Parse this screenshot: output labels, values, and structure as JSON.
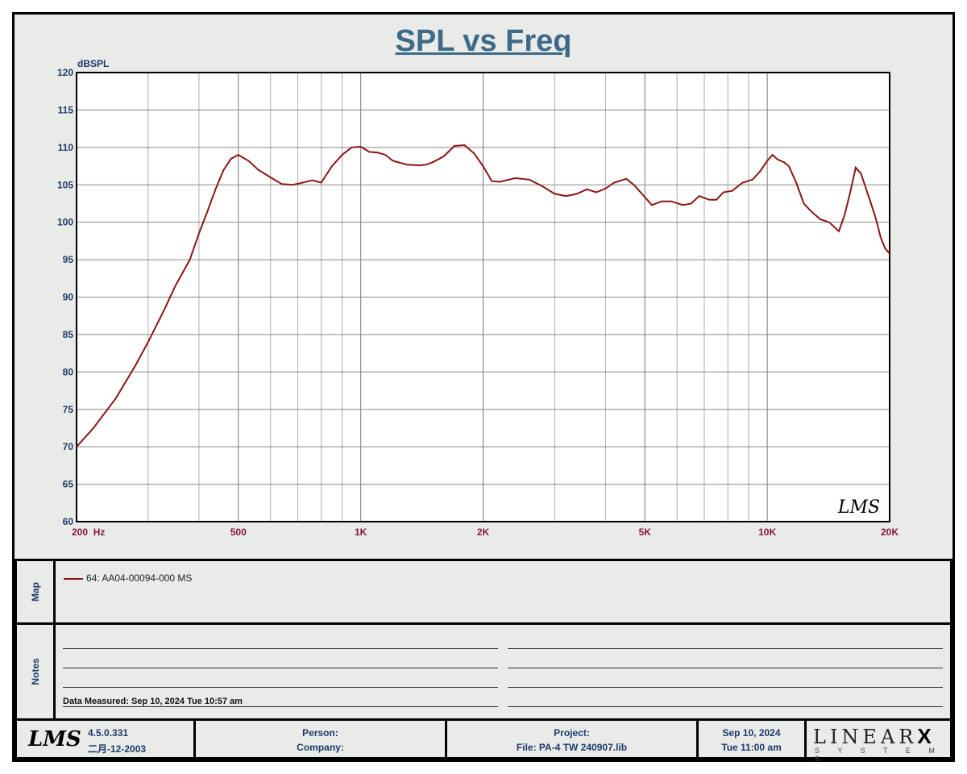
{
  "chart_data": {
    "type": "line",
    "title": "SPL vs Freq",
    "ylabel": "dBSPL",
    "xscale": "log",
    "xlim": [
      200,
      20000
    ],
    "ylim": [
      60,
      120
    ],
    "yticks": [
      60,
      65,
      70,
      75,
      80,
      85,
      90,
      95,
      100,
      105,
      110,
      115,
      120
    ],
    "xtick_labels": [
      {
        "x": 200,
        "label": "200  Hz"
      },
      {
        "x": 500,
        "label": "500"
      },
      {
        "x": 1000,
        "label": "1K"
      },
      {
        "x": 2000,
        "label": "2K"
      },
      {
        "x": 5000,
        "label": "5K"
      },
      {
        "x": 10000,
        "label": "10K"
      },
      {
        "x": 20000,
        "label": "20K"
      }
    ],
    "grid": true,
    "series": [
      {
        "name": "64: AA04-00094-000  MS",
        "color": "#8b1515",
        "x": [
          200,
          220,
          250,
          280,
          300,
          330,
          350,
          380,
          400,
          420,
          440,
          460,
          480,
          500,
          530,
          560,
          600,
          640,
          680,
          720,
          760,
          800,
          850,
          900,
          950,
          1000,
          1050,
          1100,
          1150,
          1200,
          1300,
          1400,
          1450,
          1500,
          1600,
          1700,
          1800,
          1900,
          2000,
          2100,
          2200,
          2400,
          2600,
          2800,
          3000,
          3200,
          3400,
          3600,
          3800,
          4000,
          4200,
          4500,
          4700,
          4900,
          5200,
          5500,
          5800,
          6200,
          6500,
          6800,
          7200,
          7500,
          7800,
          8200,
          8700,
          9200,
          9600,
          10000,
          10300,
          10600,
          11000,
          11300,
          11800,
          12300,
          12800,
          13500,
          14200,
          15000,
          15500,
          16000,
          16500,
          17000,
          17500,
          18000,
          18500,
          19000,
          19500,
          20000
        ],
        "y": [
          70,
          72.5,
          76.5,
          81,
          84,
          88.5,
          91.5,
          95,
          98.5,
          101.5,
          104.5,
          107,
          108.5,
          109,
          108.2,
          107,
          106,
          105.1,
          105,
          105.3,
          105.6,
          105.3,
          107.5,
          109,
          110,
          110.1,
          109.4,
          109.3,
          109,
          108.2,
          107.7,
          107.6,
          107.7,
          108,
          108.8,
          110.2,
          110.3,
          109.2,
          107.5,
          105.5,
          105.4,
          105.9,
          105.7,
          104.8,
          103.8,
          103.5,
          103.8,
          104.4,
          104,
          104.5,
          105.3,
          105.8,
          105,
          103.9,
          102.3,
          102.8,
          102.8,
          102.3,
          102.5,
          103.5,
          103,
          103,
          104,
          104.2,
          105.3,
          105.7,
          106.8,
          108.2,
          109,
          108.4,
          108,
          107.5,
          105.2,
          102.5,
          101.5,
          100.4,
          100,
          98.8,
          101,
          104,
          107.3,
          106.5,
          104.5,
          102.5,
          100.5,
          98,
          96.5,
          95.8
        ]
      }
    ]
  },
  "map": {
    "label": "Map",
    "legend_entry": "64: AA04-00094-000  MS"
  },
  "notes": {
    "label": "Notes",
    "data_measured": "Data Measured: Sep 10, 2024  Tue 10:57 am"
  },
  "footer": {
    "logo_text": "LMS",
    "version": "4.5.0.331",
    "build_date": "二月-12-2003",
    "person_label": "Person:",
    "company_label": "Company:",
    "project_label": "Project:",
    "file_label": "File: PA-4 TW  240907.lib",
    "date": "Sep 10, 2024",
    "time": "Tue 11:00 am",
    "brand": "LINEAR",
    "brand_x": "X",
    "brand_sub": "S Y S T E M S"
  },
  "watermark": "LMS"
}
